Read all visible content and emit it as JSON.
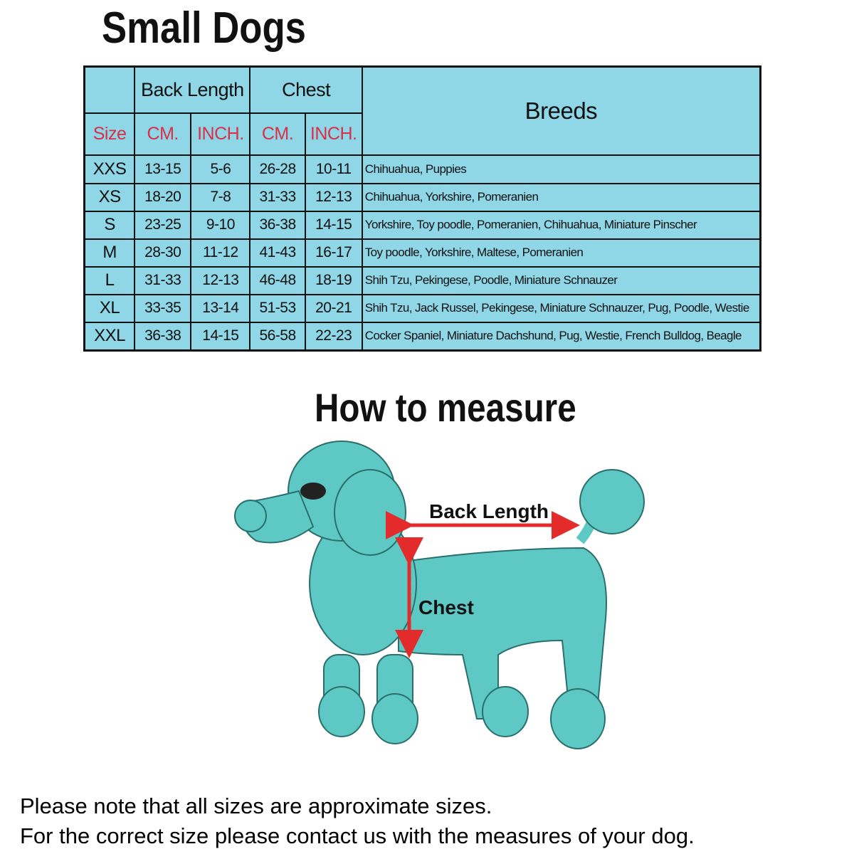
{
  "title": "Small Dogs",
  "table": {
    "group_headers": {
      "back_length": "Back Length",
      "chest": "Chest",
      "breeds": "Breeds"
    },
    "sub_headers": {
      "size": "Size",
      "back_cm": "CM.",
      "back_inch": "INCH.",
      "chest_cm": "CM.",
      "chest_inch": "INCH."
    },
    "rows": [
      {
        "size": "XXS",
        "back_cm": "13-15",
        "back_inch": "5-6",
        "chest_cm": "26-28",
        "chest_inch": "10-11",
        "breeds": "Chihuahua, Puppies"
      },
      {
        "size": "XS",
        "back_cm": "18-20",
        "back_inch": "7-8",
        "chest_cm": "31-33",
        "chest_inch": "12-13",
        "breeds": "Chihuahua, Yorkshire, Pomeranien"
      },
      {
        "size": "S",
        "back_cm": "23-25",
        "back_inch": "9-10",
        "chest_cm": "36-38",
        "chest_inch": "14-15",
        "breeds": "Yorkshire, Toy poodle, Pomeranien, Chihuahua, Miniature Pinscher"
      },
      {
        "size": "M",
        "back_cm": "28-30",
        "back_inch": "11-12",
        "chest_cm": "41-43",
        "chest_inch": "16-17",
        "breeds": "Toy poodle, Yorkshire, Maltese, Pomeranien"
      },
      {
        "size": "L",
        "back_cm": "31-33",
        "back_inch": "12-13",
        "chest_cm": "46-48",
        "chest_inch": "18-19",
        "breeds": "Shih Tzu, Pekingese, Poodle, Miniature Schnauzer"
      },
      {
        "size": "XL",
        "back_cm": "33-35",
        "back_inch": "13-14",
        "chest_cm": "51-53",
        "chest_inch": "20-21",
        "breeds": "Shih Tzu, Jack Russel, Pekingese, Miniature Schnauzer, Pug, Poodle, Westie"
      },
      {
        "size": "XXL",
        "back_cm": "36-38",
        "back_inch": "14-15",
        "chest_cm": "56-58",
        "chest_inch": "22-23",
        "breeds": "Cocker Spaniel, Miniature Dachshund, Pug, Westie, French Bulldog, Beagle"
      }
    ]
  },
  "measure": {
    "title": "How to measure",
    "back_length_label": "Back Length",
    "chest_label": "Chest"
  },
  "notes": [
    "Please note that all sizes are approximate sizes.",
    "For the correct size please contact us with the measures of your dog."
  ],
  "colors": {
    "table_bg": "#8fd6e6",
    "header_red": "#d9304a",
    "dog": "#5ec8c4",
    "arrow": "#e32b2b"
  }
}
